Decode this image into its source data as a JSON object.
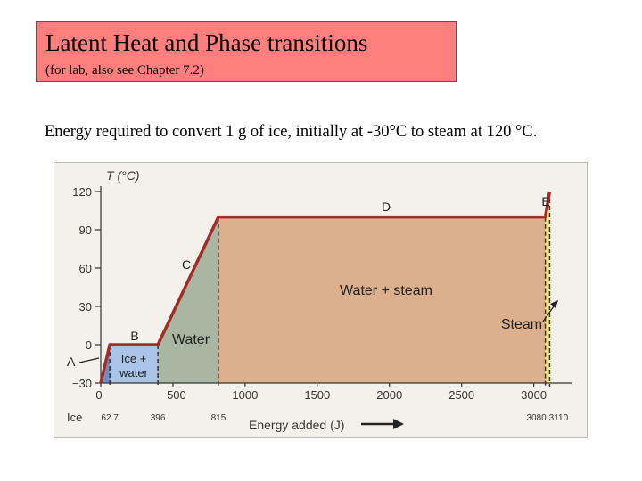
{
  "slide": {
    "title": "Latent Heat and Phase transitions",
    "subtitle": "(for lab, also see Chapter 7.2)",
    "description": "Energy required to convert 1 g of ice, initially at -30°C to steam at 120 °C.",
    "title_bg": "#ff7f7f"
  },
  "chart_data": {
    "type": "line",
    "title": "",
    "xlabel": "Energy added (J)",
    "ylabel": "T (°C)",
    "xlim": [
      0,
      3200
    ],
    "ylim": [
      -30,
      120
    ],
    "grid": false,
    "x_ticks": [
      {
        "value": 0,
        "label": "0"
      },
      {
        "value": 500,
        "label": "500"
      },
      {
        "value": 1000,
        "label": "1000"
      },
      {
        "value": 1500,
        "label": "1500"
      },
      {
        "value": 2000,
        "label": "2000"
      },
      {
        "value": 2500,
        "label": "2500"
      },
      {
        "value": 3000,
        "label": "3000"
      }
    ],
    "x_marker_labels": [
      {
        "value": 62.7,
        "label": "62.7"
      },
      {
        "value": 396,
        "label": "396"
      },
      {
        "value": 815,
        "label": "815"
      },
      {
        "value": 3080,
        "label": "3080"
      },
      {
        "value": 3110,
        "label": "3110"
      }
    ],
    "y_ticks": [
      {
        "value": -30,
        "label": "−30"
      },
      {
        "value": 0,
        "label": "0"
      },
      {
        "value": 30,
        "label": "30"
      },
      {
        "value": 60,
        "label": "60"
      },
      {
        "value": 90,
        "label": "90"
      },
      {
        "value": 120,
        "label": "120"
      }
    ],
    "series": [
      {
        "points": [
          {
            "x": 0,
            "y": -30
          },
          {
            "x": 62.7,
            "y": 0
          },
          {
            "x": 396,
            "y": 0
          },
          {
            "x": 815,
            "y": 100
          },
          {
            "x": 3080,
            "y": 100
          },
          {
            "x": 3110,
            "y": 120
          }
        ],
        "color": "#a52a2a"
      }
    ],
    "regions": [
      {
        "label": "Ice",
        "x0": 0,
        "x1": 62.7,
        "color": "#6d8fc7"
      },
      {
        "label": "Ice +\nwater",
        "x0": 62.7,
        "x1": 396,
        "color": "#a9c4e6"
      },
      {
        "label": "Water",
        "x0": 396,
        "x1": 815,
        "color": "#a9b7a2"
      },
      {
        "label": "Water + steam",
        "x0": 815,
        "x1": 3080,
        "color": "#dcb08c"
      },
      {
        "label": "Steam",
        "x0": 3080,
        "x1": 3110,
        "color": "#f0e47a"
      }
    ],
    "segment_labels": [
      "A",
      "B",
      "C",
      "D",
      "E"
    ],
    "panel_bg": "#f4f1ea"
  }
}
